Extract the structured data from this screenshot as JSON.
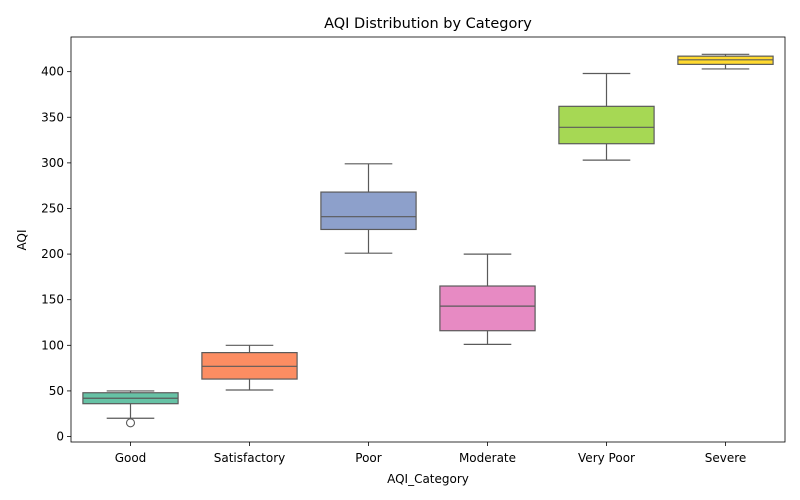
{
  "chart_data": {
    "type": "box",
    "title": "AQI Distribution by Category",
    "xlabel": "AQI_Category",
    "ylabel": "AQI",
    "ylim": [
      -6,
      438
    ],
    "yticks": [
      0,
      50,
      100,
      150,
      200,
      250,
      300,
      350,
      400
    ],
    "grid": false,
    "categories": [
      "Good",
      "Satisfactory",
      "Poor",
      "Moderate",
      "Very Poor",
      "Severe"
    ],
    "boxes": [
      {
        "category": "Good",
        "whisker_low": 20,
        "q1": 36,
        "median": 42,
        "q3": 48,
        "whisker_high": 50,
        "fliers": [
          15
        ],
        "color": "#66c2a5"
      },
      {
        "category": "Satisfactory",
        "whisker_low": 51,
        "q1": 63,
        "median": 77,
        "q3": 92,
        "whisker_high": 100,
        "fliers": [],
        "color": "#fc8d62"
      },
      {
        "category": "Poor",
        "whisker_low": 201,
        "q1": 227,
        "median": 241,
        "q3": 268,
        "whisker_high": 299,
        "fliers": [],
        "color": "#8da0cb"
      },
      {
        "category": "Moderate",
        "whisker_low": 101,
        "q1": 116,
        "median": 143,
        "q3": 165,
        "whisker_high": 200,
        "fliers": [],
        "color": "#e78ac3"
      },
      {
        "category": "Very Poor",
        "whisker_low": 303,
        "q1": 321,
        "median": 339,
        "q3": 362,
        "whisker_high": 398,
        "fliers": [],
        "color": "#a6d854"
      },
      {
        "category": "Severe",
        "whisker_low": 403,
        "q1": 408,
        "median": 413,
        "q3": 417,
        "whisker_high": 419,
        "fliers": [],
        "color": "#ffd92f"
      }
    ]
  }
}
